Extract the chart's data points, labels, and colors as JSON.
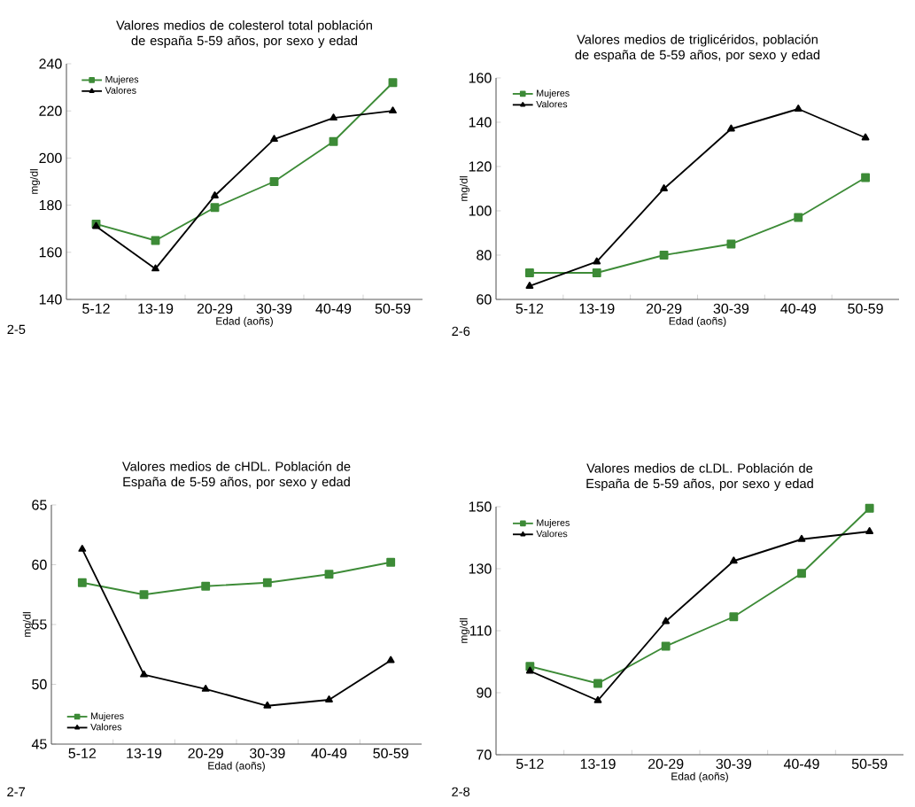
{
  "chart_data": [
    {
      "type": "line",
      "title": "Valores medios de colesterol total población de españa 5-59 años, por sexo y edad",
      "xlabel": "Edad (aoñs)",
      "ylabel": "mg/dl",
      "categories": [
        "5-12",
        "13-19",
        "20-29",
        "30-39",
        "40-49",
        "50-59"
      ],
      "ylim": [
        140,
        240
      ],
      "yticks": [
        140,
        160,
        180,
        200,
        220,
        240
      ],
      "legend": "top left",
      "grid": false,
      "annotations": [
        "2-5"
      ],
      "series": [
        {
          "name": "Mujeres",
          "color": "#3d8b37",
          "marker": "square",
          "values": [
            172,
            165,
            179,
            190,
            207,
            232
          ]
        },
        {
          "name": "Valores",
          "color": "#000000",
          "marker": "triangle",
          "values": [
            171,
            153,
            184,
            208,
            217,
            220
          ]
        }
      ]
    },
    {
      "type": "line",
      "title": "Valores medios de triglicéridos, población de españa de 5-59 años, por sexo y edad",
      "xlabel": "Edad (aoñs)",
      "ylabel": "mg/dl",
      "categories": [
        "5-12",
        "13-19",
        "20-29",
        "30-39",
        "40-49",
        "50-59"
      ],
      "ylim": [
        60,
        160
      ],
      "yticks": [
        60,
        80,
        100,
        120,
        140,
        160
      ],
      "legend": "top left",
      "grid": false,
      "annotations": [
        "2-6"
      ],
      "series": [
        {
          "name": "Mujeres",
          "color": "#3d8b37",
          "marker": "square",
          "values": [
            72,
            72,
            80,
            85,
            97,
            115
          ]
        },
        {
          "name": "Valores",
          "color": "#000000",
          "marker": "triangle",
          "values": [
            66,
            77,
            110,
            137,
            146,
            133
          ]
        }
      ]
    },
    {
      "type": "line",
      "title": "Valores medios de cHDL. Población de España de 5-59 años, por sexo y edad",
      "xlabel": "Edad (aoñs)",
      "ylabel": "mg/dl",
      "categories": [
        "5-12",
        "13-19",
        "20-29",
        "30-39",
        "40-49",
        "50-59"
      ],
      "ylim": [
        45,
        65
      ],
      "yticks": [
        45,
        50,
        55,
        60,
        65
      ],
      "legend": "bottom left",
      "grid": false,
      "annotations": [
        "2-7"
      ],
      "series": [
        {
          "name": "Mujeres",
          "color": "#3d8b37",
          "marker": "square",
          "values": [
            58.5,
            57.5,
            58.2,
            58.5,
            59.2,
            60.2
          ]
        },
        {
          "name": "Valores",
          "color": "#000000",
          "marker": "triangle",
          "values": [
            61.3,
            50.8,
            49.6,
            48.2,
            48.7,
            52.0
          ]
        }
      ]
    },
    {
      "type": "line",
      "title": "Valores medios de cLDL. Población de España de 5-59 años, por sexo y edad",
      "xlabel": "Edad (aoñs)",
      "ylabel": "mg/dl",
      "categories": [
        "5-12",
        "13-19",
        "20-29",
        "30-39",
        "40-49",
        "50-59"
      ],
      "ylim": [
        70,
        150
      ],
      "yticks": [
        70,
        90,
        110,
        130,
        150
      ],
      "legend": "top left",
      "grid": false,
      "annotations": [
        "2-8"
      ],
      "series": [
        {
          "name": "Mujeres",
          "color": "#3d8b37",
          "marker": "square",
          "values": [
            98.5,
            93,
            105,
            114.5,
            128.5,
            149.5
          ]
        },
        {
          "name": "Valores",
          "color": "#000000",
          "marker": "triangle",
          "values": [
            97,
            87.5,
            113,
            132.5,
            139.5,
            142
          ]
        }
      ]
    }
  ]
}
